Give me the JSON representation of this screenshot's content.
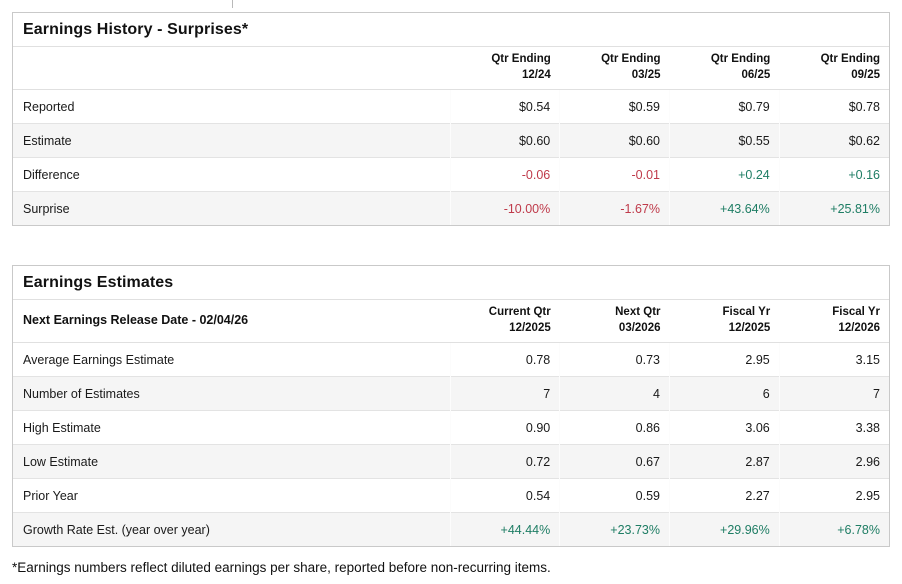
{
  "page": {
    "footnote": "*Earnings numbers reflect diluted earnings per share, reported before non-recurring items."
  },
  "colors": {
    "positive": "#1e7d64",
    "negative": "#bf3a4a",
    "stripe": "#f5f5f5",
    "border": "#c9c9c9"
  },
  "earnings_history": {
    "title": "Earnings History - Surprises*",
    "columns": [
      {
        "line1": "Qtr Ending",
        "line2": "12/24"
      },
      {
        "line1": "Qtr Ending",
        "line2": "03/25"
      },
      {
        "line1": "Qtr Ending",
        "line2": "06/25"
      },
      {
        "line1": "Qtr Ending",
        "line2": "09/25"
      }
    ],
    "rows": [
      {
        "label": "Reported",
        "values": [
          "$0.54",
          "$0.59",
          "$0.79",
          "$0.78"
        ]
      },
      {
        "label": "Estimate",
        "values": [
          "$0.60",
          "$0.60",
          "$0.55",
          "$0.62"
        ]
      },
      {
        "label": "Difference",
        "values": [
          "-0.06",
          "-0.01",
          "+0.24",
          "+0.16"
        ]
      },
      {
        "label": "Surprise",
        "values": [
          "-10.00%",
          "-1.67%",
          "+43.64%",
          "+25.81%"
        ]
      }
    ]
  },
  "earnings_estimates": {
    "title": "Earnings Estimates",
    "corner_label": "Next Earnings Release Date - 02/04/26",
    "columns": [
      {
        "line1": "Current Qtr",
        "line2": "12/2025"
      },
      {
        "line1": "Next Qtr",
        "line2": "03/2026"
      },
      {
        "line1": "Fiscal Yr",
        "line2": "12/2025"
      },
      {
        "line1": "Fiscal Yr",
        "line2": "12/2026"
      }
    ],
    "rows": [
      {
        "label": "Average Earnings Estimate",
        "values": [
          "0.78",
          "0.73",
          "2.95",
          "3.15"
        ]
      },
      {
        "label": "Number of Estimates",
        "values": [
          "7",
          "4",
          "6",
          "7"
        ]
      },
      {
        "label": "High Estimate",
        "values": [
          "0.90",
          "0.86",
          "3.06",
          "3.38"
        ]
      },
      {
        "label": "Low Estimate",
        "values": [
          "0.72",
          "0.67",
          "2.87",
          "2.96"
        ]
      },
      {
        "label": "Prior Year",
        "values": [
          "0.54",
          "0.59",
          "2.27",
          "2.95"
        ]
      },
      {
        "label": "Growth Rate Est. (year over year)",
        "values": [
          "+44.44%",
          "+23.73%",
          "+29.96%",
          "+6.78%"
        ]
      }
    ]
  }
}
